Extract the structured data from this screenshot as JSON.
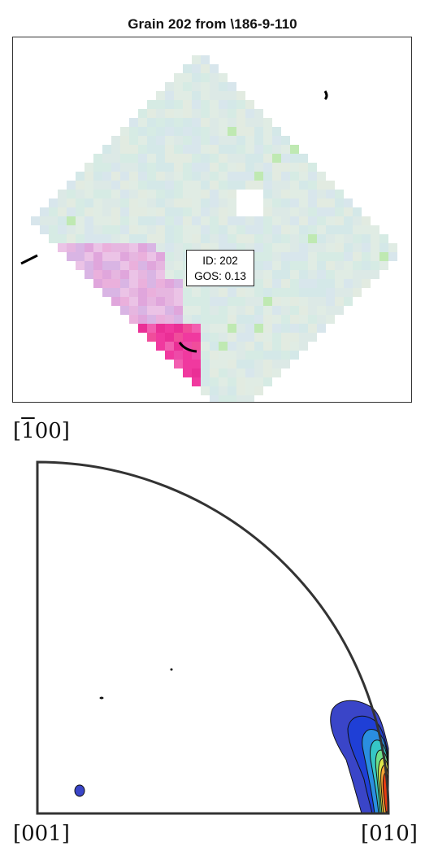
{
  "title": "Grain 202 from \\186-9-110",
  "grain_info": {
    "id_text": "ID: 202",
    "gos_text": "GOS: 0.13"
  },
  "pole_figure": {
    "label_top": "[̄100]",
    "label_bottom_left": "[001]",
    "label_bottom_right": "[010]"
  },
  "colors": {
    "matrix": "#dce9e6",
    "pink": "#e6b6e0",
    "magenta": "#f0399f",
    "boundary": "#000000",
    "contour_low": "#3a45c8",
    "contour_high": "#e83c10"
  }
}
